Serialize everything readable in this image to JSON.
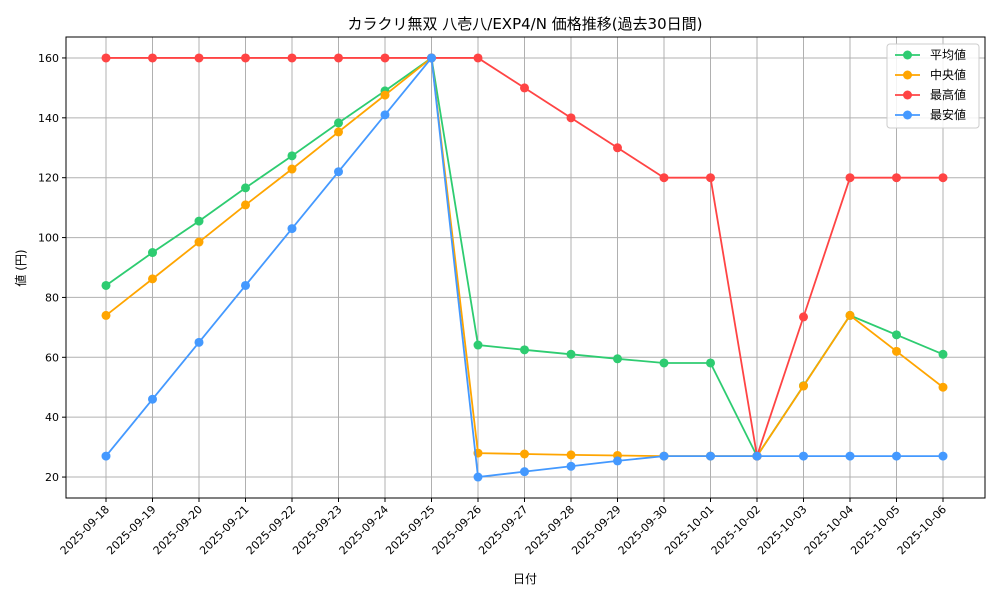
{
  "chart_data": {
    "type": "line",
    "title": "カラクリ無双 八壱八/EXP4/N 価格推移(過去30日間)",
    "xlabel": "日付",
    "ylabel": "値 (円)",
    "ylim": [
      13,
      167
    ],
    "yticks": [
      20,
      40,
      60,
      80,
      100,
      120,
      140,
      160
    ],
    "grid": true,
    "legend_position": "top-right",
    "categories": [
      "2025-09-18",
      "2025-09-19",
      "2025-09-20",
      "2025-09-21",
      "2025-09-22",
      "2025-09-23",
      "2025-09-24",
      "2025-09-25",
      "2025-09-26",
      "2025-09-27",
      "2025-09-28",
      "2025-09-29",
      "2025-09-30",
      "2025-10-01",
      "2025-10-02",
      "2025-10-03",
      "2025-10-04",
      "2025-10-05",
      "2025-10-06"
    ],
    "series": [
      {
        "name": "平均値",
        "color": "#2ecc71",
        "values": [
          84,
          95,
          105.5,
          116.6,
          127.3,
          138.3,
          149,
          160,
          64.1,
          62.5,
          61,
          59.5,
          58.1,
          58.1,
          27,
          50.5,
          74,
          67.5,
          61
        ]
      },
      {
        "name": "中央値",
        "color": "#ffa500",
        "values": [
          74,
          86.2,
          98.5,
          110.9,
          122.9,
          135.3,
          147.6,
          160,
          28,
          27.7,
          27.4,
          27.2,
          27,
          27,
          27,
          50.4,
          74,
          62,
          50
        ]
      },
      {
        "name": "最高値",
        "color": "#ff4444",
        "values": [
          160,
          160,
          160,
          160,
          160,
          160,
          160,
          160,
          160,
          150,
          140,
          130,
          120,
          120,
          27,
          73.5,
          120,
          120,
          120
        ]
      },
      {
        "name": "最安値",
        "color": "#4499ff",
        "values": [
          27,
          46,
          65,
          84,
          103,
          122,
          141,
          160,
          20,
          21.8,
          23.6,
          25.4,
          27,
          27,
          27,
          27,
          27,
          27,
          27
        ]
      }
    ]
  }
}
